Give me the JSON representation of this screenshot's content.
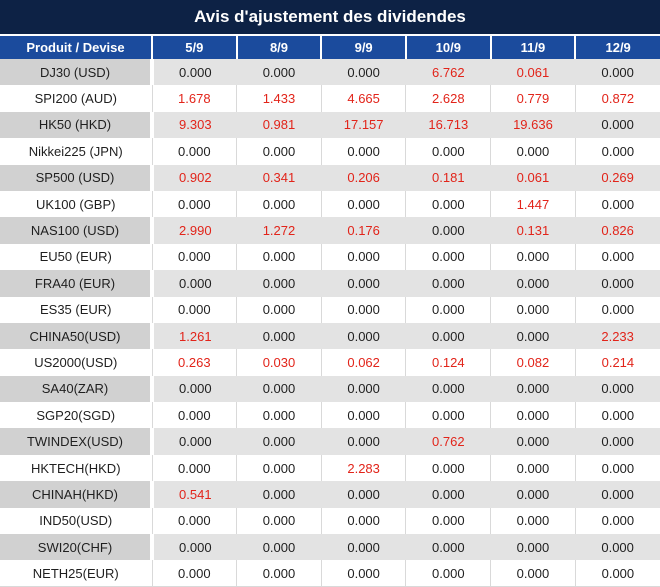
{
  "title": "Avis d'ajustement des dividendes",
  "colors": {
    "title_bg": "#0d2245",
    "header_bg": "#1b4b9d",
    "header_text": "#ffffff",
    "label_alt_bg": "#d1d1d1",
    "value_alt_bg": "#e3e3e3",
    "negative_value": "#e2241a",
    "text": "#1f1f1f",
    "grid_line": "#d9d9d9"
  },
  "table": {
    "columns": [
      "Produit / Devise",
      "5/9",
      "8/9",
      "9/9",
      "10/9",
      "11/9",
      "12/9"
    ],
    "rows": [
      {
        "product": "DJ30 (USD)",
        "values": [
          "0.000",
          "0.000",
          "0.000",
          "6.762",
          "0.061",
          "0.000"
        ],
        "red": [
          false,
          false,
          false,
          true,
          true,
          false
        ]
      },
      {
        "product": "SPI200 (AUD)",
        "values": [
          "1.678",
          "1.433",
          "4.665",
          "2.628",
          "0.779",
          "0.872"
        ],
        "red": [
          true,
          true,
          true,
          true,
          true,
          true
        ]
      },
      {
        "product": "HK50 (HKD)",
        "values": [
          "9.303",
          "0.981",
          "17.157",
          "16.713",
          "19.636",
          "0.000"
        ],
        "red": [
          true,
          true,
          true,
          true,
          true,
          false
        ]
      },
      {
        "product": "Nikkei225 (JPN)",
        "values": [
          "0.000",
          "0.000",
          "0.000",
          "0.000",
          "0.000",
          "0.000"
        ],
        "red": [
          false,
          false,
          false,
          false,
          false,
          false
        ]
      },
      {
        "product": "SP500 (USD)",
        "values": [
          "0.902",
          "0.341",
          "0.206",
          "0.181",
          "0.061",
          "0.269"
        ],
        "red": [
          true,
          true,
          true,
          true,
          true,
          true
        ]
      },
      {
        "product": "UK100 (GBP)",
        "values": [
          "0.000",
          "0.000",
          "0.000",
          "0.000",
          "1.447",
          "0.000"
        ],
        "red": [
          false,
          false,
          false,
          false,
          true,
          false
        ]
      },
      {
        "product": "NAS100 (USD)",
        "values": [
          "2.990",
          "1.272",
          "0.176",
          "0.000",
          "0.131",
          "0.826"
        ],
        "red": [
          true,
          true,
          true,
          false,
          true,
          true
        ]
      },
      {
        "product": "EU50 (EUR)",
        "values": [
          "0.000",
          "0.000",
          "0.000",
          "0.000",
          "0.000",
          "0.000"
        ],
        "red": [
          false,
          false,
          false,
          false,
          false,
          false
        ]
      },
      {
        "product": "FRA40 (EUR)",
        "values": [
          "0.000",
          "0.000",
          "0.000",
          "0.000",
          "0.000",
          "0.000"
        ],
        "red": [
          false,
          false,
          false,
          false,
          false,
          false
        ]
      },
      {
        "product": "ES35 (EUR)",
        "values": [
          "0.000",
          "0.000",
          "0.000",
          "0.000",
          "0.000",
          "0.000"
        ],
        "red": [
          false,
          false,
          false,
          false,
          false,
          false
        ]
      },
      {
        "product": "CHINA50(USD)",
        "values": [
          "1.261",
          "0.000",
          "0.000",
          "0.000",
          "0.000",
          "2.233"
        ],
        "red": [
          true,
          false,
          false,
          false,
          false,
          true
        ]
      },
      {
        "product": "US2000(USD)",
        "values": [
          "0.263",
          "0.030",
          "0.062",
          "0.124",
          "0.082",
          "0.214"
        ],
        "red": [
          true,
          true,
          true,
          true,
          true,
          true
        ]
      },
      {
        "product": "SA40(ZAR)",
        "values": [
          "0.000",
          "0.000",
          "0.000",
          "0.000",
          "0.000",
          "0.000"
        ],
        "red": [
          false,
          false,
          false,
          false,
          false,
          false
        ]
      },
      {
        "product": "SGP20(SGD)",
        "values": [
          "0.000",
          "0.000",
          "0.000",
          "0.000",
          "0.000",
          "0.000"
        ],
        "red": [
          false,
          false,
          false,
          false,
          false,
          false
        ]
      },
      {
        "product": "TWINDEX(USD)",
        "values": [
          "0.000",
          "0.000",
          "0.000",
          "0.762",
          "0.000",
          "0.000"
        ],
        "red": [
          false,
          false,
          false,
          true,
          false,
          false
        ]
      },
      {
        "product": "HKTECH(HKD)",
        "values": [
          "0.000",
          "0.000",
          "2.283",
          "0.000",
          "0.000",
          "0.000"
        ],
        "red": [
          false,
          false,
          true,
          false,
          false,
          false
        ]
      },
      {
        "product": "CHINAH(HKD)",
        "values": [
          "0.541",
          "0.000",
          "0.000",
          "0.000",
          "0.000",
          "0.000"
        ],
        "red": [
          true,
          false,
          false,
          false,
          false,
          false
        ]
      },
      {
        "product": "IND50(USD)",
        "values": [
          "0.000",
          "0.000",
          "0.000",
          "0.000",
          "0.000",
          "0.000"
        ],
        "red": [
          false,
          false,
          false,
          false,
          false,
          false
        ]
      },
      {
        "product": "SWI20(CHF)",
        "values": [
          "0.000",
          "0.000",
          "0.000",
          "0.000",
          "0.000",
          "0.000"
        ],
        "red": [
          false,
          false,
          false,
          false,
          false,
          false
        ]
      },
      {
        "product": "NETH25(EUR)",
        "values": [
          "0.000",
          "0.000",
          "0.000",
          "0.000",
          "0.000",
          "0.000"
        ],
        "red": [
          false,
          false,
          false,
          false,
          false,
          false
        ]
      }
    ]
  }
}
